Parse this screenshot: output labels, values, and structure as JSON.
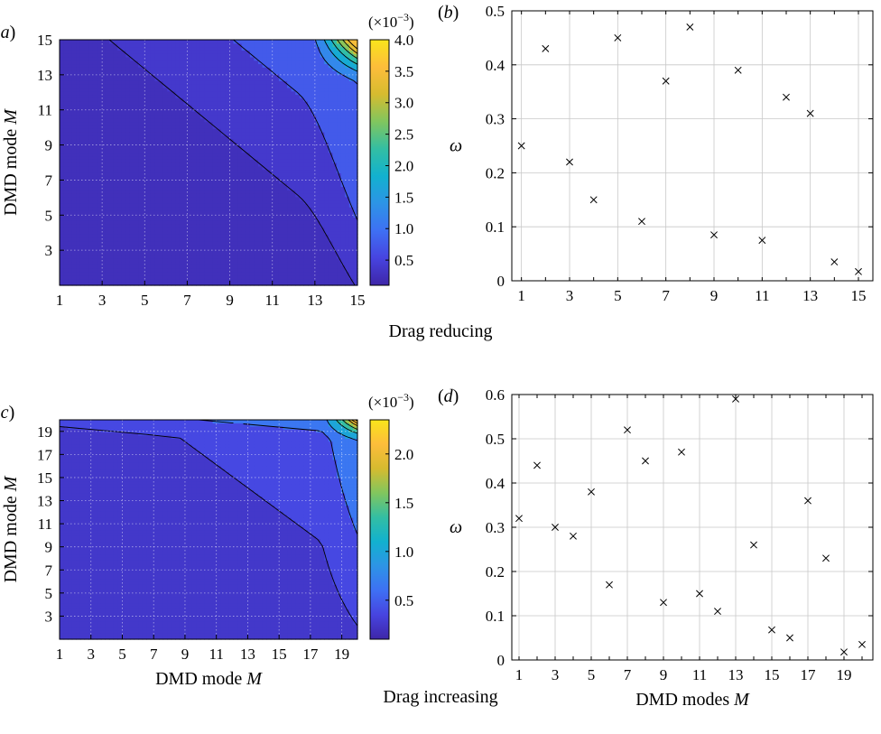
{
  "captions": {
    "top": "Drag reducing",
    "bottom": "Drag increasing"
  },
  "colors": {
    "viridis_stops": [
      "#3e26a8",
      "#4744e0",
      "#3e70f4",
      "#2d94e6",
      "#12b1cf",
      "#33bea3",
      "#81c65e",
      "#d6bb2f",
      "#fdbd3b",
      "#f9e51b"
    ],
    "contour_line": "#000000",
    "grid": "#c8c8c8"
  },
  "chart_data": [
    {
      "id": "a",
      "panel_label": "(a)",
      "type": "heatmap",
      "xlabel": "",
      "ylabel": "DMD mode M",
      "xlim": [
        1,
        15
      ],
      "ylim": [
        1,
        15
      ],
      "xticks": [
        1,
        3,
        5,
        7,
        9,
        11,
        13,
        15
      ],
      "yticks": [
        3,
        5,
        7,
        9,
        11,
        13,
        15
      ],
      "colorbar": {
        "min": 0.1,
        "max": 4.0,
        "ticks": [
          0.5,
          1.0,
          1.5,
          2.0,
          2.5,
          3.0,
          3.5,
          4.0
        ],
        "tick_labels": [
          "0.5",
          "1.0",
          "1.5",
          "2.0",
          "2.5",
          "3.0",
          "3.5",
          "4.0"
        ],
        "exponent_label": "(×10",
        "exponent": "−3",
        "exponent_close": ")"
      }
    },
    {
      "id": "b",
      "panel_label": "(b)",
      "type": "scatter",
      "xlabel": "",
      "ylabel": "ω",
      "xlim": [
        0.6,
        15.6
      ],
      "ylim": [
        0,
        0.5
      ],
      "xticks": [
        1,
        3,
        5,
        7,
        9,
        11,
        13,
        15
      ],
      "yticks": [
        0,
        0.1,
        0.2,
        0.3,
        0.4,
        0.5
      ],
      "ytick_labels": [
        "0",
        "0.1",
        "0.2",
        "0.3",
        "0.4",
        "0.5"
      ],
      "x": [
        1,
        2,
        3,
        4,
        5,
        6,
        7,
        8,
        9,
        10,
        11,
        12,
        13,
        14,
        15
      ],
      "y": [
        0.25,
        0.43,
        0.22,
        0.15,
        0.45,
        0.11,
        0.37,
        0.47,
        0.085,
        0.39,
        0.075,
        0.34,
        0.31,
        0.035,
        0.017
      ],
      "marker": "x",
      "grid": true
    },
    {
      "id": "c",
      "panel_label": "(c)",
      "type": "heatmap",
      "xlabel": "DMD mode M",
      "ylabel": "DMD mode M",
      "xlim": [
        1,
        20
      ],
      "ylim": [
        1,
        20
      ],
      "xticks": [
        1,
        3,
        5,
        7,
        9,
        11,
        13,
        15,
        17,
        19
      ],
      "yticks": [
        3,
        5,
        7,
        9,
        11,
        13,
        15,
        17,
        19
      ],
      "colorbar": {
        "min": 0.1,
        "max": 2.35,
        "ticks": [
          0.5,
          1.0,
          1.5,
          2.0
        ],
        "tick_labels": [
          "0.5",
          "1.0",
          "1.5",
          "2.0"
        ],
        "exponent_label": "(×10",
        "exponent": "−3",
        "exponent_close": ")"
      }
    },
    {
      "id": "d",
      "panel_label": "(d)",
      "type": "scatter",
      "xlabel": "DMD modes M",
      "ylabel": "ω",
      "xlim": [
        0.6,
        20.6
      ],
      "ylim": [
        0,
        0.6
      ],
      "xticks": [
        1,
        3,
        5,
        7,
        9,
        11,
        13,
        15,
        17,
        19
      ],
      "yticks": [
        0,
        0.1,
        0.2,
        0.3,
        0.4,
        0.5,
        0.6
      ],
      "ytick_labels": [
        "0",
        "0.1",
        "0.2",
        "0.3",
        "0.4",
        "0.5",
        "0.6"
      ],
      "x": [
        1,
        2,
        3,
        4,
        5,
        6,
        7,
        8,
        9,
        10,
        11,
        12,
        13,
        14,
        15,
        16,
        17,
        18,
        19,
        20
      ],
      "y": [
        0.32,
        0.44,
        0.3,
        0.28,
        0.38,
        0.17,
        0.52,
        0.45,
        0.13,
        0.47,
        0.15,
        0.11,
        0.59,
        0.26,
        0.068,
        0.05,
        0.36,
        0.23,
        0.018,
        0.035
      ],
      "marker": "x",
      "grid": true
    }
  ]
}
